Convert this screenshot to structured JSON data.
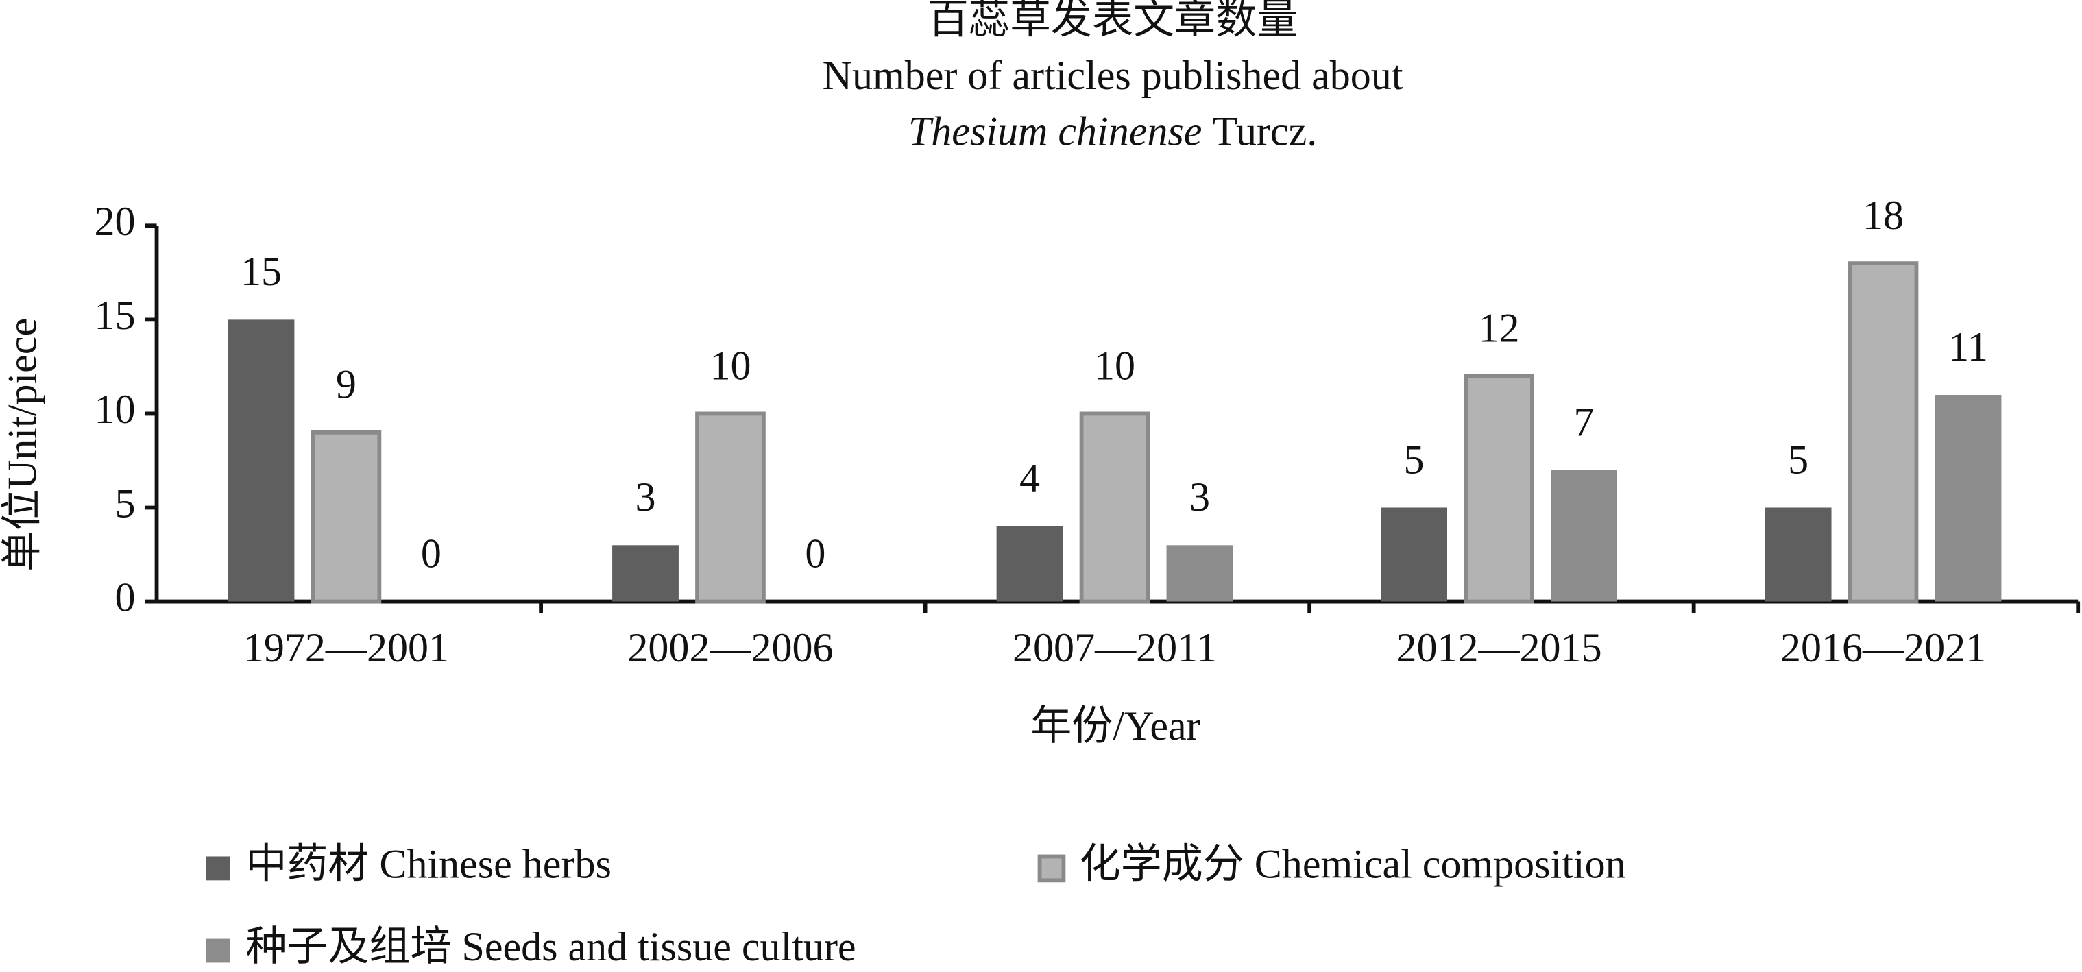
{
  "chart_data": {
    "type": "bar",
    "title": {
      "zh": "百蕊草发表文章数量",
      "en": "Number of articles published about",
      "species": "Thesium chinense",
      "authority": "Turcz."
    },
    "x_label": "年份/Year",
    "y_label": "单位Unit/piece",
    "categories": [
      "1972—2001",
      "2002—2006",
      "2007—2011",
      "2012—2015",
      "2016—2021"
    ],
    "series": [
      {
        "name": "中药材 Chinese herbs",
        "color": "#5f5f5f",
        "values": [
          15,
          3,
          4,
          5,
          5
        ]
      },
      {
        "name": "化学成分 Chemical composition",
        "color": "#b3b3b3",
        "values": [
          9,
          10,
          10,
          12,
          18
        ]
      },
      {
        "name": "种子及组培 Seeds and tissue culture",
        "color": "#8c8c8c",
        "values": [
          0,
          0,
          3,
          7,
          11
        ]
      }
    ],
    "ylim": [
      0,
      20
    ],
    "yticks": [
      0,
      5,
      10,
      15,
      20
    ],
    "grid": false
  }
}
